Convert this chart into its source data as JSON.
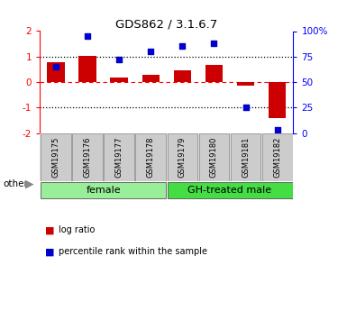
{
  "title": "GDS862 / 3.1.6.7",
  "samples": [
    "GSM19175",
    "GSM19176",
    "GSM19177",
    "GSM19178",
    "GSM19179",
    "GSM19180",
    "GSM19181",
    "GSM19182"
  ],
  "log_ratio": [
    0.78,
    1.02,
    0.18,
    0.28,
    0.45,
    0.68,
    -0.13,
    -1.42
  ],
  "percentile_rank": [
    65,
    95,
    72,
    80,
    85,
    88,
    25,
    3
  ],
  "groups": [
    {
      "label": "female",
      "start": 0,
      "end": 4,
      "color": "#99EE99"
    },
    {
      "label": "GH-treated male",
      "start": 4,
      "end": 8,
      "color": "#44DD44"
    }
  ],
  "bar_color": "#CC0000",
  "dot_color": "#0000CC",
  "ylim_left": [
    -2,
    2
  ],
  "ylim_right": [
    0,
    100
  ],
  "yticks_left": [
    -2,
    -1,
    0,
    1,
    2
  ],
  "yticks_right": [
    0,
    25,
    50,
    75,
    100
  ],
  "ytick_labels_right": [
    "0",
    "25",
    "50",
    "75",
    "100%"
  ],
  "legend_items": [
    {
      "label": "log ratio",
      "color": "#CC0000"
    },
    {
      "label": "percentile rank within the sample",
      "color": "#0000CC"
    }
  ],
  "other_label": "other",
  "background_color": "#ffffff",
  "bar_width": 0.55,
  "cell_bg": "#CCCCCC",
  "cell_edge": "#888888"
}
